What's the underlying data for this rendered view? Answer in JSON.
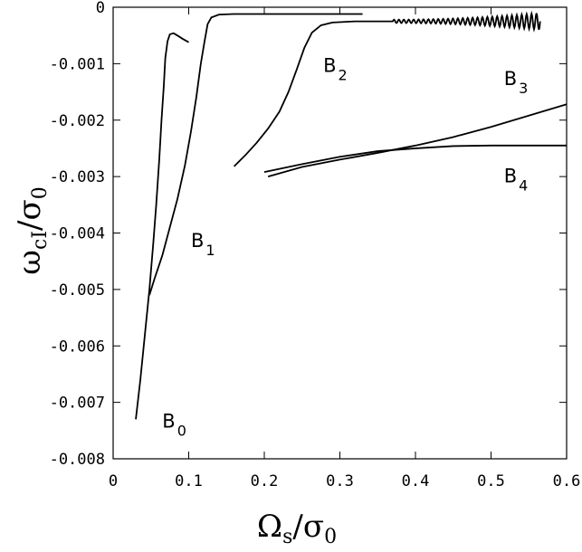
{
  "chart_data": {
    "type": "line",
    "title": "",
    "xlim": [
      0,
      0.6
    ],
    "ylim": [
      -0.008,
      0
    ],
    "grid": false,
    "xticks": [
      {
        "value": 0,
        "label": "0"
      },
      {
        "value": 0.1,
        "label": "0.1"
      },
      {
        "value": 0.2,
        "label": "0.2"
      },
      {
        "value": 0.3,
        "label": "0.3"
      },
      {
        "value": 0.4,
        "label": "0.4"
      },
      {
        "value": 0.5,
        "label": "0.5"
      },
      {
        "value": 0.6,
        "label": "0.6"
      }
    ],
    "yticks": [
      {
        "value": 0,
        "label": "0"
      },
      {
        "value": -0.001,
        "label": "-0.001"
      },
      {
        "value": -0.002,
        "label": "-0.002"
      },
      {
        "value": -0.003,
        "label": "-0.003"
      },
      {
        "value": -0.004,
        "label": "-0.004"
      },
      {
        "value": -0.005,
        "label": "-0.005"
      },
      {
        "value": -0.006,
        "label": "-0.006"
      },
      {
        "value": -0.007,
        "label": "-0.007"
      },
      {
        "value": -0.008,
        "label": "-0.008"
      }
    ],
    "xlabel": {
      "main": "Ω",
      "sub": "s",
      "slash": "/",
      "main2": "σ",
      "sub2": "0"
    },
    "ylabel": {
      "main": "ω",
      "sub": "cI",
      "slash": "/",
      "main2": "σ",
      "sub2": "0"
    },
    "series": [
      {
        "label": "B",
        "label_sub": "0",
        "label_at": [
          0.065,
          -0.00745
        ],
        "points": [
          [
            0.03,
            -0.0073
          ],
          [
            0.036,
            -0.0066
          ],
          [
            0.042,
            -0.0058
          ],
          [
            0.048,
            -0.005
          ],
          [
            0.053,
            -0.0042
          ],
          [
            0.057,
            -0.0035
          ],
          [
            0.061,
            -0.0027
          ],
          [
            0.064,
            -0.002
          ],
          [
            0.067,
            -0.0014
          ],
          [
            0.069,
            -0.0009
          ],
          [
            0.072,
            -0.0006
          ],
          [
            0.075,
            -0.00048
          ],
          [
            0.08,
            -0.00046
          ],
          [
            0.085,
            -0.0005
          ],
          [
            0.092,
            -0.00056
          ],
          [
            0.1,
            -0.00062
          ]
        ]
      },
      {
        "label": "B",
        "label_sub": "1",
        "label_at": [
          0.103,
          -0.00425
        ],
        "points": [
          [
            0.048,
            -0.0051
          ],
          [
            0.055,
            -0.0048
          ],
          [
            0.065,
            -0.0044
          ],
          [
            0.075,
            -0.0039
          ],
          [
            0.085,
            -0.0034
          ],
          [
            0.095,
            -0.0028
          ],
          [
            0.103,
            -0.0022
          ],
          [
            0.11,
            -0.0016
          ],
          [
            0.116,
            -0.001
          ],
          [
            0.121,
            -0.0006
          ],
          [
            0.125,
            -0.0003
          ],
          [
            0.13,
            -0.00018
          ],
          [
            0.14,
            -0.00013
          ],
          [
            0.16,
            -0.00012
          ],
          [
            0.2,
            -0.00012
          ],
          [
            0.25,
            -0.00012
          ],
          [
            0.3,
            -0.00012
          ],
          [
            0.33,
            -0.00012
          ]
        ]
      },
      {
        "label": "B",
        "label_sub": "2",
        "label_at": [
          0.278,
          -0.00115
        ],
        "points": [
          [
            0.16,
            -0.00282
          ],
          [
            0.175,
            -0.00262
          ],
          [
            0.19,
            -0.0024
          ],
          [
            0.205,
            -0.00215
          ],
          [
            0.22,
            -0.00185
          ],
          [
            0.232,
            -0.0015
          ],
          [
            0.243,
            -0.0011
          ],
          [
            0.253,
            -0.00072
          ],
          [
            0.263,
            -0.00045
          ],
          [
            0.275,
            -0.00032
          ],
          [
            0.29,
            -0.00027
          ],
          [
            0.32,
            -0.00025
          ],
          [
            0.36,
            -0.00025
          ],
          [
            0.4,
            -0.00025
          ],
          [
            0.45,
            -0.00025
          ],
          [
            0.5,
            -0.00025
          ],
          [
            0.54,
            -0.00025
          ],
          [
            0.565,
            -0.00025
          ]
        ],
        "wiggle": {
          "from": 0.37,
          "to": 0.565,
          "period": 0.0065
        }
      },
      {
        "label": "B",
        "label_sub": "3",
        "label_at": [
          0.517,
          -0.00138
        ],
        "points": [
          [
            0.205,
            -0.003
          ],
          [
            0.25,
            -0.00283
          ],
          [
            0.3,
            -0.0027
          ],
          [
            0.35,
            -0.00258
          ],
          [
            0.4,
            -0.00245
          ],
          [
            0.45,
            -0.0023
          ],
          [
            0.5,
            -0.00212
          ],
          [
            0.55,
            -0.00192
          ],
          [
            0.6,
            -0.00172
          ]
        ]
      },
      {
        "label": "B",
        "label_sub": "4",
        "label_at": [
          0.517,
          -0.0031
        ],
        "points": [
          [
            0.2,
            -0.00292
          ],
          [
            0.25,
            -0.00278
          ],
          [
            0.3,
            -0.00265
          ],
          [
            0.35,
            -0.00255
          ],
          [
            0.4,
            -0.0025
          ],
          [
            0.45,
            -0.00246
          ],
          [
            0.5,
            -0.00245
          ],
          [
            0.55,
            -0.00245
          ],
          [
            0.6,
            -0.00245
          ]
        ]
      }
    ]
  }
}
